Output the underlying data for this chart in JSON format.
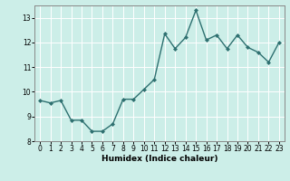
{
  "x": [
    0,
    1,
    2,
    3,
    4,
    5,
    6,
    7,
    8,
    9,
    10,
    11,
    12,
    13,
    14,
    15,
    16,
    17,
    18,
    19,
    20,
    21,
    22,
    23
  ],
  "y": [
    9.65,
    9.55,
    9.65,
    8.85,
    8.85,
    8.4,
    8.4,
    8.7,
    9.7,
    9.7,
    10.1,
    10.5,
    12.35,
    11.75,
    12.2,
    13.3,
    12.1,
    12.3,
    11.75,
    12.3,
    11.8,
    11.6,
    11.2,
    12.0
  ],
  "line_color": "#2e7070",
  "marker": "D",
  "marker_size": 2.0,
  "line_width": 1.0,
  "xlabel": "Humidex (Indice chaleur)",
  "xlim": [
    -0.5,
    23.5
  ],
  "ylim": [
    8.0,
    13.5
  ],
  "yticks": [
    8,
    9,
    10,
    11,
    12,
    13
  ],
  "xticks": [
    0,
    1,
    2,
    3,
    4,
    5,
    6,
    7,
    8,
    9,
    10,
    11,
    12,
    13,
    14,
    15,
    16,
    17,
    18,
    19,
    20,
    21,
    22,
    23
  ],
  "bg_color": "#cceee8",
  "grid_color": "#ffffff",
  "tick_label_fontsize": 5.5,
  "xlabel_fontsize": 6.5,
  "xlabel_fontweight": "bold"
}
